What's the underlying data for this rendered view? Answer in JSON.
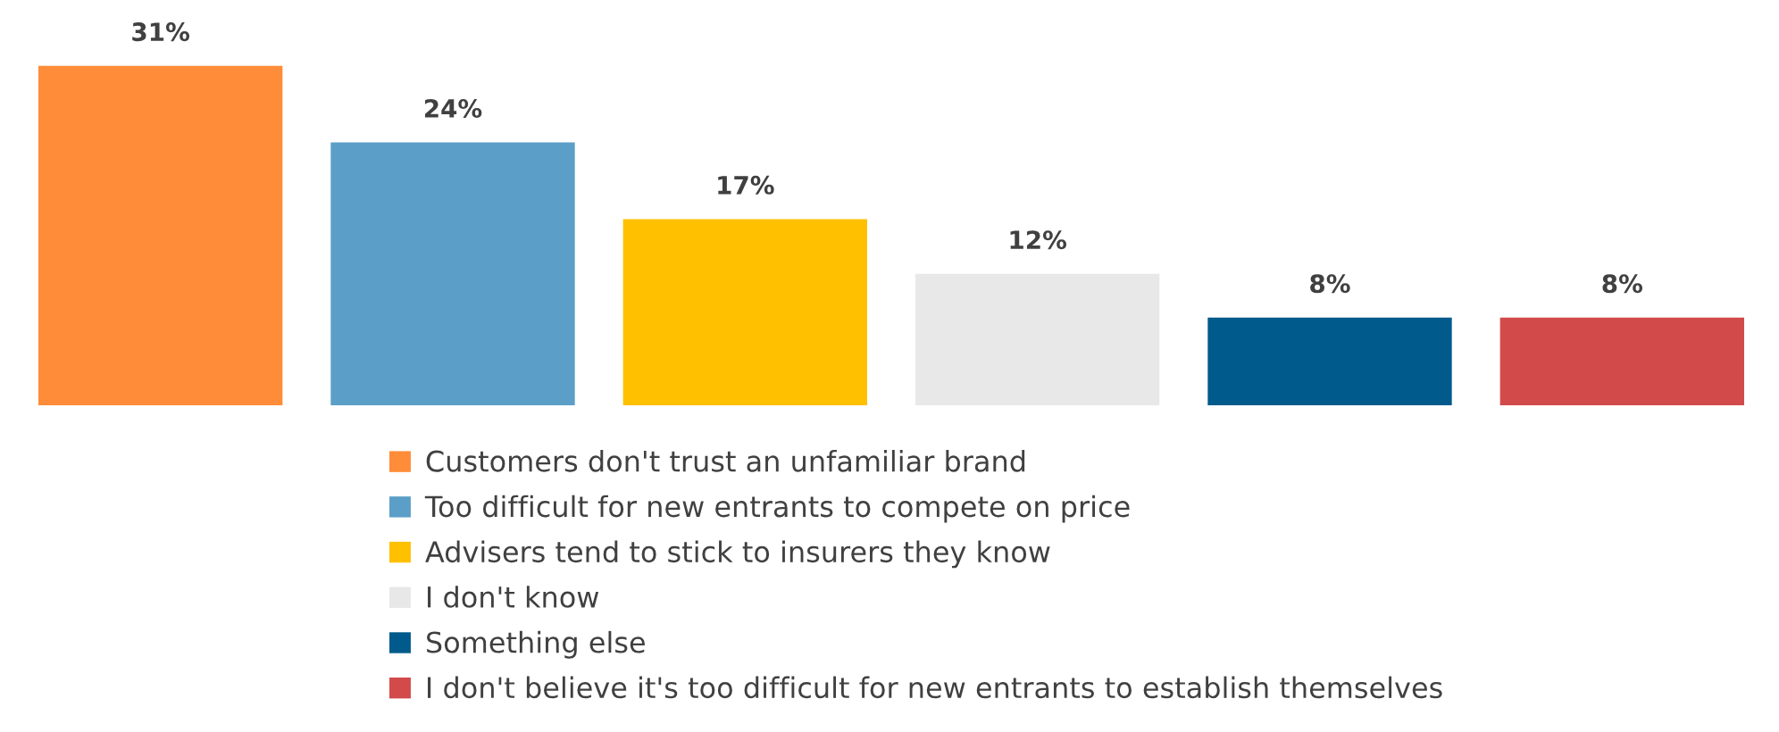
{
  "chart_data": {
    "type": "bar",
    "legend": "bottom",
    "stacked": true,
    "categories": [
      null,
      null,
      null,
      null,
      null,
      null
    ],
    "series": [
      {
        "name": "Customers don't trust an unfamiliar brand",
        "color": "#ff8c38",
        "values": [
          31,
          null,
          null,
          null,
          null,
          null
        ],
        "value_labels": [
          "31%",
          null,
          null,
          null,
          null,
          null
        ]
      },
      {
        "name": "Too difficult for new entrants to compete on price",
        "color": "#5b9fc8",
        "values": [
          null,
          24,
          null,
          null,
          null,
          null
        ],
        "value_labels": [
          null,
          "24%",
          null,
          null,
          null,
          null
        ]
      },
      {
        "name": "Advisers tend to stick to insurers they know",
        "color": "#ffc000",
        "values": [
          null,
          null,
          17,
          null,
          null,
          null
        ],
        "value_labels": [
          null,
          null,
          "17%",
          null,
          null,
          null
        ]
      },
      {
        "name": "I don't know",
        "color": "#e8e8e8",
        "values": [
          null,
          null,
          null,
          12,
          null,
          null
        ],
        "value_labels": [
          null,
          null,
          null,
          "12%",
          null,
          null
        ]
      },
      {
        "name": "Something else",
        "color": "#005a8c",
        "values": [
          null,
          null,
          null,
          null,
          8,
          null
        ],
        "value_labels": [
          null,
          null,
          null,
          null,
          "8%",
          null
        ]
      },
      {
        "name": "I don't believe it's too difficult for new entrants to establish themselves",
        "color": "#d24a4a",
        "values": [
          null,
          null,
          null,
          null,
          null,
          8
        ],
        "value_labels": [
          null,
          null,
          null,
          null,
          null,
          "8%"
        ]
      }
    ]
  }
}
